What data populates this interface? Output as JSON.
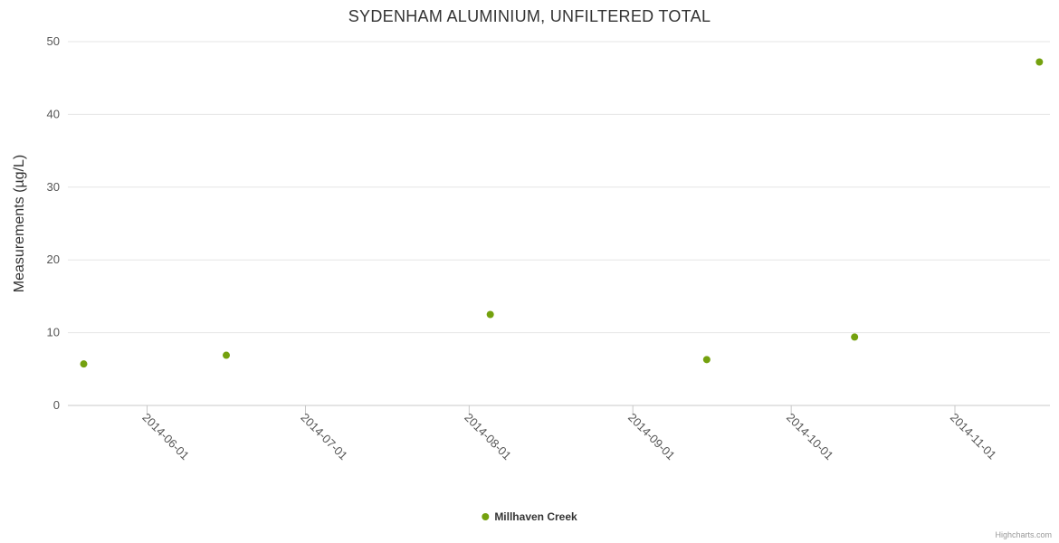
{
  "credits": "Highcharts.com",
  "chart_data": {
    "type": "scatter",
    "title": "SYDENHAM ALUMINIUM, UNFILTERED TOTAL",
    "xlabel": "",
    "ylabel": "Measurements (µg/L)",
    "ylim": [
      0,
      50
    ],
    "yticks": [
      0,
      10,
      20,
      30,
      40,
      50
    ],
    "xticks": [
      "2014-06-01",
      "2014-07-01",
      "2014-08-01",
      "2014-09-01",
      "2014-10-01",
      "2014-11-01"
    ],
    "xrange": [
      "2014-05-17",
      "2014-11-19"
    ],
    "grid": "horizontal",
    "legend_position": "bottom-center",
    "axis_color": "#c8c8c8",
    "grid_color": "#e6e6e6",
    "label_color": "#555555",
    "series": [
      {
        "name": "Millhaven Creek",
        "color": "#74a10e",
        "points": [
          {
            "x": "2014-05-20",
            "y": 5.7
          },
          {
            "x": "2014-06-16",
            "y": 6.9
          },
          {
            "x": "2014-08-05",
            "y": 12.5
          },
          {
            "x": "2014-09-15",
            "y": 6.3
          },
          {
            "x": "2014-10-13",
            "y": 9.4
          },
          {
            "x": "2014-11-17",
            "y": 47.2
          }
        ]
      }
    ]
  }
}
